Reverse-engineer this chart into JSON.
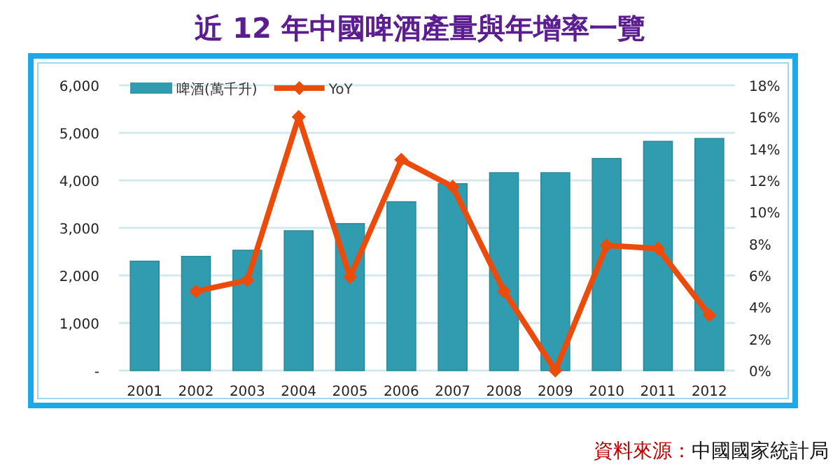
{
  "chart_data": {
    "type": "bar",
    "title": "近 12 年中國啤酒產量與年增率一覽",
    "categories": [
      "2001",
      "2002",
      "2003",
      "2004",
      "2005",
      "2006",
      "2007",
      "2008",
      "2009",
      "2010",
      "2011",
      "2012"
    ],
    "series": [
      {
        "name": "啤酒(萬千升)",
        "color": "#319bb0",
        "values": [
          2300,
          2400,
          2530,
          2940,
          3090,
          3550,
          3930,
          4160,
          4160,
          4460,
          4820,
          4880
        ]
      },
      {
        "name": "YoY",
        "type": "line",
        "axis": "y2",
        "color": "#ec4c0b",
        "marker": "diamond",
        "values": [
          null,
          5.0,
          5.7,
          16.0,
          5.9,
          13.3,
          11.6,
          5.0,
          0,
          7.9,
          7.7,
          3.5
        ]
      }
    ],
    "ylim": [
      0,
      6000
    ],
    "yticks": [
      {
        "value": 0,
        "label": "-"
      },
      {
        "value": 1000,
        "label": "1,000"
      },
      {
        "value": 2000,
        "label": "2,000"
      },
      {
        "value": 3000,
        "label": "3,000"
      },
      {
        "value": 4000,
        "label": "4,000"
      },
      {
        "value": 5000,
        "label": "5,000"
      },
      {
        "value": 6000,
        "label": "6,000"
      }
    ],
    "y2lim": [
      0,
      18
    ],
    "y2ticks": [
      {
        "value": 0,
        "label": "0%"
      },
      {
        "value": 2,
        "label": "2%"
      },
      {
        "value": 4,
        "label": "4%"
      },
      {
        "value": 6,
        "label": "6%"
      },
      {
        "value": 8,
        "label": "8%"
      },
      {
        "value": 10,
        "label": "10%"
      },
      {
        "value": 12,
        "label": "12%"
      },
      {
        "value": 14,
        "label": "14%"
      },
      {
        "value": 16,
        "label": "16%"
      },
      {
        "value": 18,
        "label": "18%"
      }
    ],
    "grid": "y",
    "legend": "top left",
    "annotations": [
      "資料來源：中國國家統計局"
    ]
  }
}
